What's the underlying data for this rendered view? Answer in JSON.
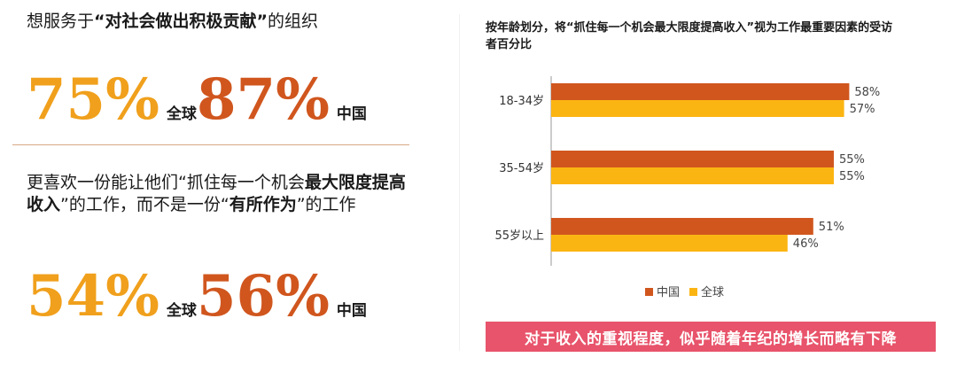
{
  "left": {
    "q1_prefix": "想服务于",
    "q1_bold": "“对社会做出积极贡献”",
    "q1_suffix": "的组织",
    "q1_global_pct": "75%",
    "q1_global_label": "全球",
    "q1_china_pct": "87%",
    "q1_china_label": "中国",
    "q2_part1": "更喜欢一份能让他们“抓住每一个机会",
    "q2_bold1": "最大限度提高收入",
    "q2_part2": "”的工作，而不是一份“",
    "q2_bold2": "有所作为",
    "q2_part3": "”的工作",
    "q2_global_pct": "54%",
    "q2_global_label": "全球",
    "q2_china_pct": "56%",
    "q2_china_label": "中国"
  },
  "colors": {
    "china": "#d0561e",
    "global": "#fbb512"
  },
  "banner": "对于收入的重视程度，似乎随着年纪的增长而略有下降",
  "chart_data": {
    "type": "bar",
    "orientation": "horizontal",
    "title": "按年龄划分，将“抓住每一个机会最大限度提高收入”视为工作最重要因素的受访者百分比",
    "categories": [
      "18-34岁",
      "35-54岁",
      "55岁以上"
    ],
    "series": [
      {
        "name": "中国",
        "values": [
          58,
          55,
          51
        ],
        "labels": [
          "58%",
          "55%",
          "51%"
        ]
      },
      {
        "name": "全球",
        "values": [
          57,
          55,
          46
        ],
        "labels": [
          "57%",
          "55%",
          "46%"
        ]
      }
    ],
    "xlim": [
      0,
      100
    ],
    "grid": false,
    "legend": "bottom"
  }
}
